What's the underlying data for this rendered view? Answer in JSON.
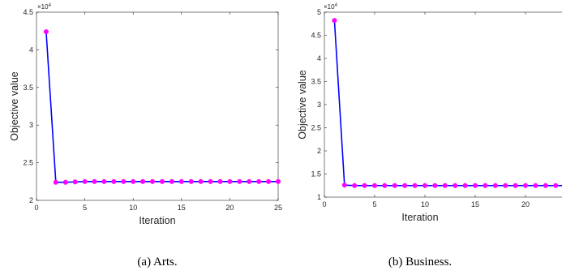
{
  "colors": {
    "line": "#0000ff",
    "marker": "#ff00ff",
    "axis": "#262626",
    "background": "#ffffff"
  },
  "chart_data": [
    {
      "type": "line",
      "caption": "(a)  Arts.",
      "xlabel": "Iteration",
      "ylabel": "Objective value",
      "exponent_label": "×10",
      "exponent_power": "4",
      "xlim": [
        0,
        25
      ],
      "ylim": [
        2.0,
        4.5
      ],
      "xticks": [
        0,
        5,
        10,
        15,
        20,
        25
      ],
      "xtick_labels": [
        "0",
        "5",
        "10",
        "15",
        "20",
        "25"
      ],
      "yticks": [
        2.0,
        2.5,
        3.0,
        3.5,
        4.0,
        4.5
      ],
      "ytick_labels": [
        "2",
        "2.5",
        "3",
        "3.5",
        "4",
        "4.5"
      ],
      "grid": false,
      "series": [
        {
          "x": [
            1,
            2,
            3,
            4,
            5,
            6,
            7,
            8,
            9,
            10,
            11,
            12,
            13,
            14,
            15,
            16,
            17,
            18,
            19,
            20,
            21,
            22,
            23,
            24,
            25
          ],
          "y": [
            4.24,
            2.24,
            2.24,
            2.245,
            2.25,
            2.25,
            2.25,
            2.25,
            2.25,
            2.25,
            2.25,
            2.25,
            2.25,
            2.25,
            2.25,
            2.25,
            2.25,
            2.25,
            2.25,
            2.25,
            2.25,
            2.25,
            2.25,
            2.25,
            2.25
          ]
        }
      ]
    },
    {
      "type": "line",
      "caption": "(b)  Business.",
      "xlabel": "Iteration",
      "ylabel": "Objective value",
      "exponent_label": "×10",
      "exponent_power": "4",
      "xlim": [
        0,
        25
      ],
      "ylim": [
        1.0,
        5.0
      ],
      "xticks": [
        0,
        5,
        10,
        15,
        20
      ],
      "xtick_labels": [
        "0",
        "5",
        "10",
        "15",
        "20"
      ],
      "yticks": [
        1.0,
        1.5,
        2.0,
        2.5,
        3.0,
        3.5,
        4.0,
        4.5,
        5.0
      ],
      "ytick_labels": [
        "1",
        "1.5",
        "2",
        "2.5",
        "3",
        "3.5",
        "4",
        "4.5",
        "5"
      ],
      "grid": false,
      "series": [
        {
          "x": [
            1,
            2,
            3,
            4,
            5,
            6,
            7,
            8,
            9,
            10,
            11,
            12,
            13,
            14,
            15,
            16,
            17,
            18,
            19,
            20,
            21,
            22,
            23,
            24,
            25
          ],
          "y": [
            4.82,
            1.26,
            1.25,
            1.25,
            1.25,
            1.25,
            1.25,
            1.25,
            1.25,
            1.25,
            1.25,
            1.25,
            1.25,
            1.25,
            1.25,
            1.25,
            1.25,
            1.25,
            1.25,
            1.25,
            1.25,
            1.25,
            1.25,
            1.25,
            1.25
          ]
        }
      ]
    }
  ]
}
